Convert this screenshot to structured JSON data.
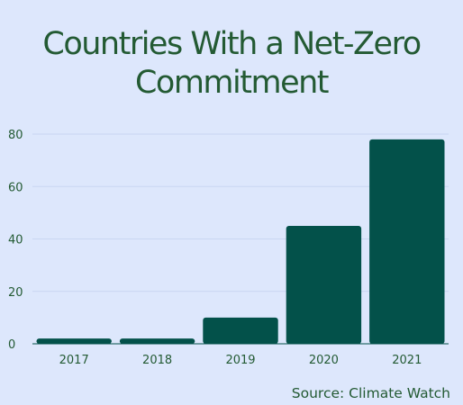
{
  "title": "Countries With a Net-Zero Commitment",
  "source": "Source: Climate Watch",
  "colors": {
    "background": "#dde7fc",
    "bar": "#03514a",
    "text": "#235a33",
    "grid": "#c9d6f2"
  },
  "chart_data": {
    "type": "bar",
    "categories": [
      "2017",
      "2018",
      "2019",
      "2020",
      "2021"
    ],
    "values": [
      2,
      2,
      10,
      45,
      78
    ],
    "ylim": [
      0,
      80
    ],
    "yticks": [
      0,
      20,
      40,
      60,
      80
    ],
    "xlabel": "",
    "ylabel": "",
    "grid": true
  }
}
